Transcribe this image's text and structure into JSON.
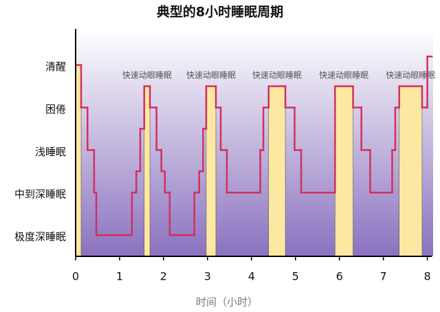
{
  "chart_data": {
    "type": "step",
    "title": "典型的8小时睡眠周期",
    "x_label": "时间（小时）",
    "x": [
      0,
      0.125,
      0.27,
      0.42,
      0.47,
      1.28,
      1.38,
      1.47,
      1.56,
      1.69,
      1.84,
      1.95,
      2.03,
      2.14,
      2.7,
      2.81,
      2.9,
      2.97,
      3.19,
      3.3,
      3.44,
      4.2,
      4.27,
      4.39,
      4.77,
      4.98,
      5.13,
      5.9,
      6.31,
      6.5,
      6.7,
      7.2,
      7.27,
      7.36,
      7.88,
      8.0
    ],
    "values": [
      4,
      3,
      2,
      1,
      0,
      1,
      1.5,
      2.5,
      3.5,
      3,
      2,
      1.5,
      1,
      0,
      1,
      1.5,
      2.5,
      3.5,
      3,
      2,
      1,
      2,
      3,
      3.5,
      3,
      2,
      1,
      3.5,
      3,
      2,
      1,
      2,
      3,
      3.5,
      3,
      4.2
    ],
    "line_color": "#d2305c",
    "highlight_color": "#fde8a2",
    "xlim": [
      0,
      8.1
    ],
    "xticks": [
      0,
      1,
      2,
      3,
      4,
      5,
      6,
      7,
      8
    ],
    "ylim": [
      -0.5,
      4.85
    ],
    "yticks": [
      {
        "value": 0,
        "label": "极度深睡眠"
      },
      {
        "value": 1,
        "label": "中到深睡眠"
      },
      {
        "value": 2,
        "label": "浅睡眠"
      },
      {
        "value": 3,
        "label": "困倦"
      },
      {
        "value": 4,
        "label": "清醒"
      }
    ],
    "annotations": [
      {
        "text": "快速动眼睡眠",
        "x": 1.625
      },
      {
        "text": "快速动眼睡眠",
        "x": 3.08
      },
      {
        "text": "快速动眼睡眠",
        "x": 4.58
      },
      {
        "text": "快速动眼睡眠",
        "x": 6.1
      },
      {
        "text": "快速动眼睡眠",
        "x": 7.62
      }
    ]
  }
}
